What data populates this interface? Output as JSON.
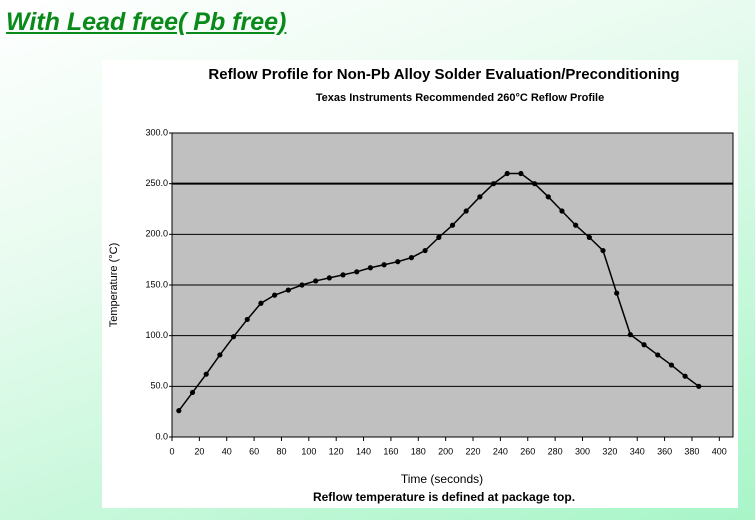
{
  "heading": "With Lead free( Pb free)",
  "chart_data": {
    "type": "line",
    "title": "Reflow Profile for Non-Pb Alloy Solder Evaluation/Preconditioning",
    "subtitle": "Texas Instruments Recommended 260°C Reflow Profile",
    "xlabel": "Time (seconds)",
    "ylabel": "Temperature (°C)",
    "note": "Reflow temperature is defined at package top.",
    "x": [
      5,
      15,
      25,
      35,
      45,
      55,
      65,
      75,
      85,
      95,
      105,
      115,
      125,
      135,
      145,
      155,
      165,
      175,
      185,
      195,
      205,
      215,
      225,
      235,
      245,
      255,
      265,
      275,
      285,
      295,
      305,
      315,
      325,
      335,
      345,
      355,
      365,
      375,
      385
    ],
    "series": [
      {
        "name": "Reflow profile",
        "color": "#000000",
        "values": [
          26,
          44,
          62,
          81,
          99,
          116,
          132,
          140,
          145,
          150,
          154,
          157,
          160,
          163,
          167,
          170,
          173,
          177,
          184,
          197,
          209,
          223,
          237,
          250,
          260,
          260,
          250,
          237,
          223,
          209,
          197,
          184,
          142,
          101,
          91,
          81,
          71,
          60,
          50
        ]
      }
    ],
    "xlim": [
      0,
      410
    ],
    "ylim": [
      0,
      300
    ],
    "xticks": [
      0,
      20,
      40,
      60,
      80,
      100,
      120,
      140,
      160,
      180,
      200,
      220,
      240,
      260,
      280,
      300,
      320,
      340,
      360,
      380,
      400
    ],
    "yticks": [
      {
        "value": 0,
        "label": "0.0"
      },
      {
        "value": 50,
        "label": "50.0"
      },
      {
        "value": 100,
        "label": "100.0"
      },
      {
        "value": 150,
        "label": "150.0"
      },
      {
        "value": 200,
        "label": "200.0"
      },
      {
        "value": 250,
        "label": "250.0"
      },
      {
        "value": 300,
        "label": "300.0"
      }
    ],
    "reference_y": 250,
    "grid": true,
    "plot_background": "#c0c0c0"
  }
}
